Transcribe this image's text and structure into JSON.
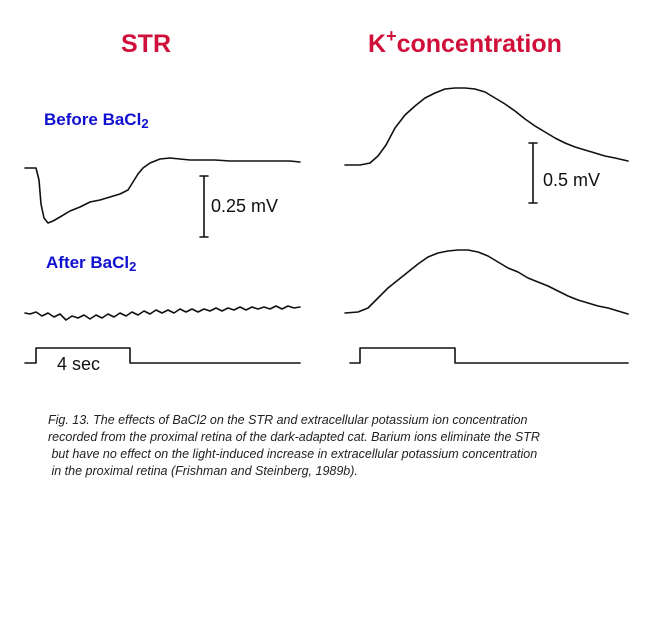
{
  "titles": {
    "str": "STR",
    "potassium_base": "K",
    "potassium_sup": "+",
    "potassium_rest": "concentration"
  },
  "conditions": {
    "before_text": "Before BaCl",
    "before_sub": "2",
    "after_text": "After BaCl",
    "after_sub": "2"
  },
  "scale_bars": {
    "str": "0.25 mV",
    "k": "0.5 mV"
  },
  "stimulus": {
    "duration": "4 sec"
  },
  "caption": {
    "line1": "Fig. 13. The effects of BaCl2 on the STR and extracellular potassium ion concentration",
    "line2": "recorded from the proximal retina of the dark-adapted cat. Barium ions eliminate the STR",
    "line3": " but have no effect on the light-induced increase in extracellular potassium concentration",
    "line4": " in the proximal retina (Frishman and Steinberg, 1989b)."
  },
  "colors": {
    "title": "#d0103a",
    "condition": "#1010d0",
    "trace": "#111111"
  }
}
